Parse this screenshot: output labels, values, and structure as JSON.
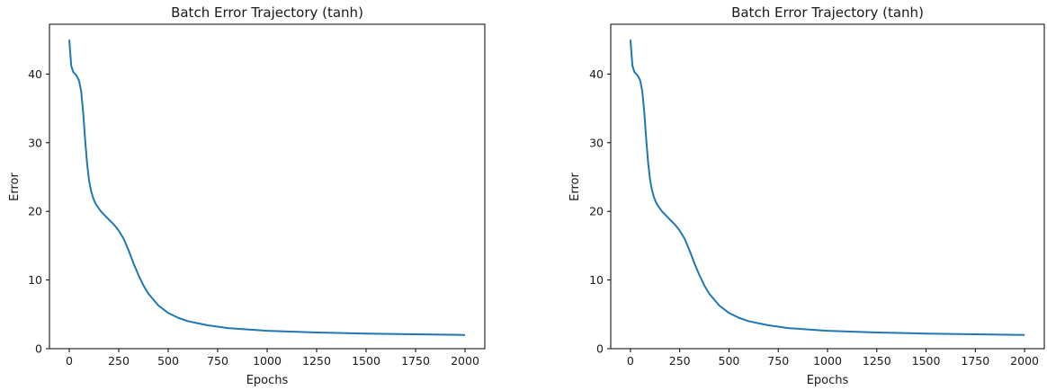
{
  "chart_data": [
    {
      "type": "line",
      "title": "Batch Error Trajectory (tanh)",
      "xlabel": "Epochs",
      "ylabel": "Error",
      "xlim": [
        -100,
        2100
      ],
      "ylim": [
        0,
        47.25
      ],
      "xticks": [
        0,
        250,
        500,
        750,
        1000,
        1250,
        1500,
        1750,
        2000
      ],
      "yticks": [
        0,
        10,
        20,
        30,
        40
      ],
      "grid": false,
      "line_color": "#1f77b4",
      "series": [
        {
          "x": [
            0,
            10,
            20,
            30,
            40,
            50,
            60,
            70,
            80,
            90,
            100,
            110,
            120,
            130,
            140,
            160,
            180,
            200,
            225,
            250,
            275,
            300,
            325,
            350,
            375,
            400,
            450,
            500,
            550,
            600,
            650,
            700,
            750,
            800,
            900,
            1000,
            1100,
            1250,
            1500,
            1750,
            2000
          ],
          "y": [
            45.0,
            41.2,
            40.3,
            40.0,
            39.6,
            39.0,
            37.5,
            34.5,
            30.5,
            27.0,
            24.5,
            23.0,
            22.0,
            21.3,
            20.8,
            20.0,
            19.4,
            18.8,
            18.1,
            17.2,
            16.0,
            14.3,
            12.4,
            10.7,
            9.2,
            8.0,
            6.3,
            5.2,
            4.5,
            4.0,
            3.7,
            3.4,
            3.2,
            3.0,
            2.8,
            2.6,
            2.5,
            2.35,
            2.2,
            2.1,
            2.0
          ]
        }
      ]
    },
    {
      "type": "line",
      "title": "Batch Error Trajectory (tanh)",
      "xlabel": "Epochs",
      "ylabel": "Error",
      "xlim": [
        -100,
        2100
      ],
      "ylim": [
        0,
        47.25
      ],
      "xticks": [
        0,
        250,
        500,
        750,
        1000,
        1250,
        1500,
        1750,
        2000
      ],
      "yticks": [
        0,
        10,
        20,
        30,
        40
      ],
      "grid": false,
      "line_color": "#1f77b4",
      "series": [
        {
          "x": [
            0,
            10,
            20,
            30,
            40,
            50,
            60,
            70,
            80,
            90,
            100,
            110,
            120,
            130,
            140,
            160,
            180,
            200,
            225,
            250,
            275,
            300,
            325,
            350,
            375,
            400,
            450,
            500,
            550,
            600,
            650,
            700,
            750,
            800,
            900,
            1000,
            1100,
            1250,
            1500,
            1750,
            2000
          ],
          "y": [
            45.0,
            41.2,
            40.3,
            40.0,
            39.6,
            39.0,
            37.5,
            34.5,
            30.5,
            27.0,
            24.5,
            23.0,
            22.0,
            21.3,
            20.8,
            20.0,
            19.4,
            18.8,
            18.1,
            17.2,
            16.0,
            14.3,
            12.4,
            10.7,
            9.2,
            8.0,
            6.3,
            5.2,
            4.5,
            4.0,
            3.7,
            3.4,
            3.2,
            3.0,
            2.8,
            2.6,
            2.5,
            2.35,
            2.2,
            2.1,
            2.0
          ]
        }
      ]
    }
  ]
}
